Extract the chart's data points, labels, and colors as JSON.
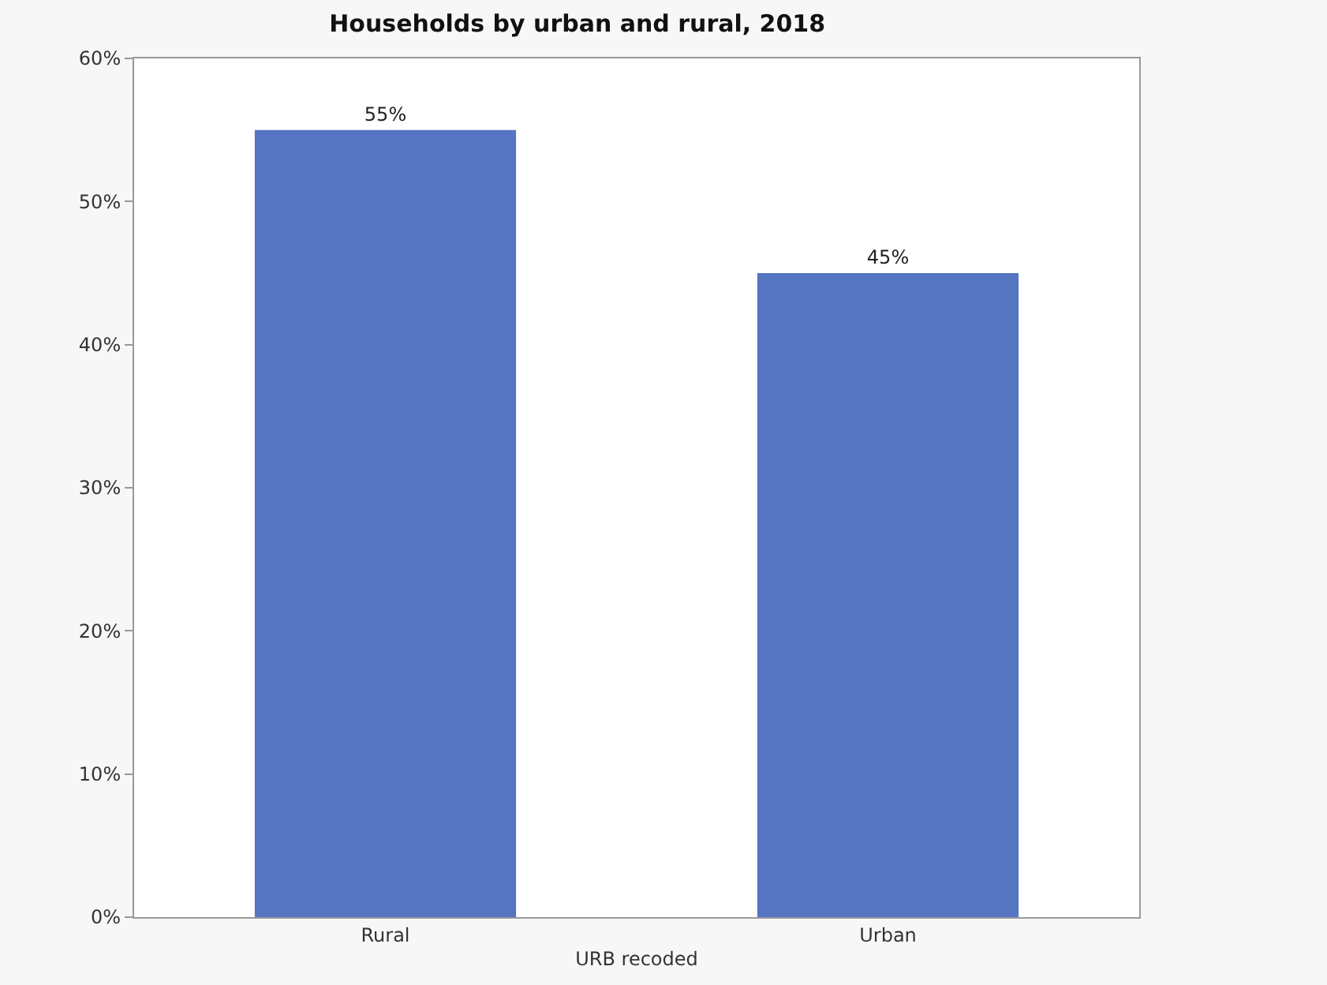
{
  "chart_data": {
    "type": "bar",
    "title": "Households by urban and rural, 2018",
    "xlabel": "URB recoded",
    "categories": [
      "Rural",
      "Urban"
    ],
    "values": [
      55,
      45
    ],
    "value_labels": [
      "55%",
      "45%"
    ],
    "color": "#5575c3",
    "ylim": [
      0,
      60
    ],
    "yticks": [
      {
        "value": 0,
        "label": "0%"
      },
      {
        "value": 10,
        "label": "10%"
      },
      {
        "value": 20,
        "label": "20%"
      },
      {
        "value": 30,
        "label": "30%"
      },
      {
        "value": 40,
        "label": "40%"
      },
      {
        "value": 50,
        "label": "50%"
      },
      {
        "value": 60,
        "label": "60%"
      }
    ],
    "tick_labels": "xy"
  }
}
